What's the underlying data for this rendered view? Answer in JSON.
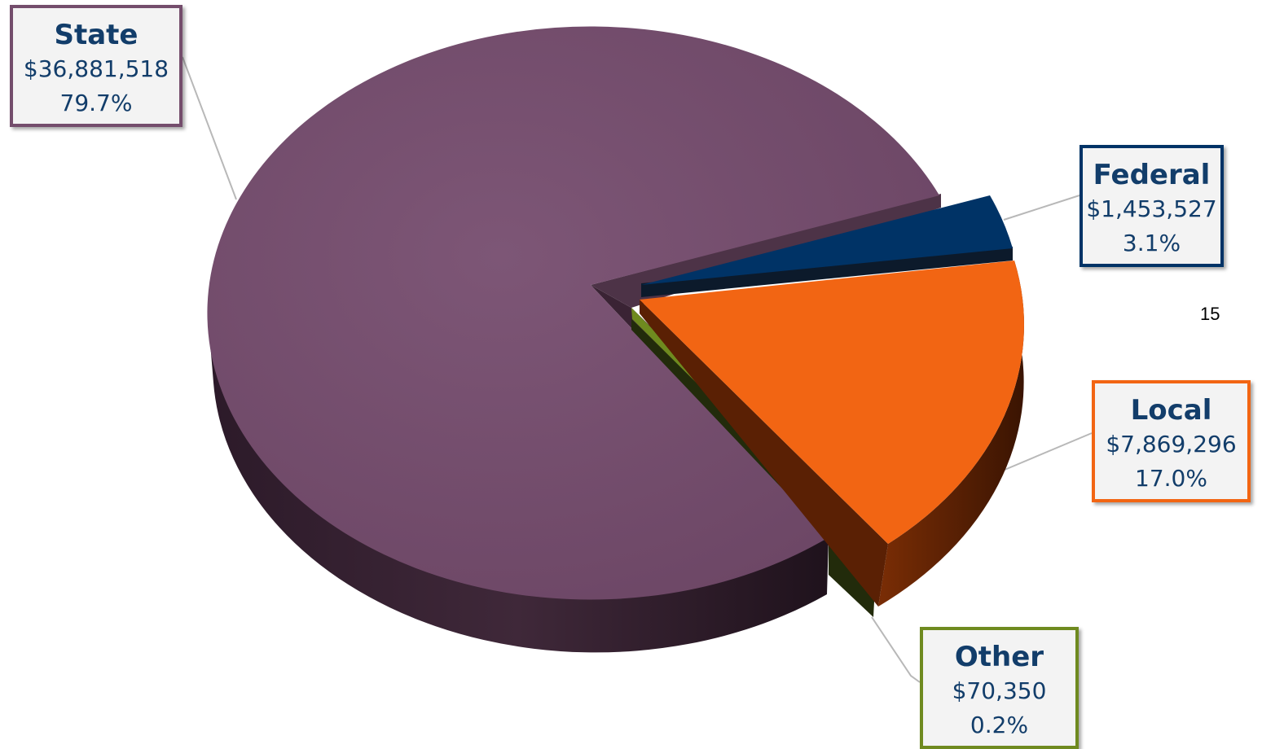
{
  "page_number": "15",
  "colors": {
    "state": "#744d6c",
    "federal": "#003366",
    "local": "#f26513",
    "other": "#6f8a1f"
  },
  "labels": {
    "state": {
      "name": "State",
      "amount": "$36,881,518",
      "pct": "79.7%"
    },
    "federal": {
      "name": "Federal",
      "amount": "$1,453,527",
      "pct": "3.1%"
    },
    "local": {
      "name": "Local",
      "amount": "$7,869,296",
      "pct": "17.0%"
    },
    "other": {
      "name": "Other",
      "amount": "$70,350",
      "pct": "0.2%"
    }
  },
  "chart_data": {
    "type": "pie",
    "title": "",
    "categories": [
      "State",
      "Federal",
      "Local",
      "Other"
    ],
    "values": [
      36881518,
      1453527,
      7869296,
      70350
    ],
    "percentages": [
      79.7,
      3.1,
      17.0,
      0.2
    ],
    "data_labels": [
      "$36,881,518",
      "$1,453,527",
      "$7,869,296",
      "$70,350"
    ],
    "legend": "none",
    "style": "3d-exploded"
  }
}
